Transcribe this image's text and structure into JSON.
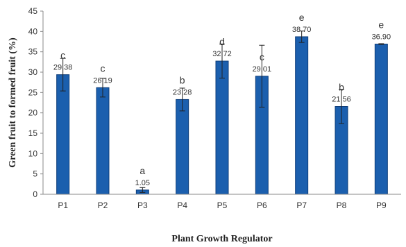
{
  "chart_data": {
    "type": "bar",
    "xlabel": "Plant Growth Regulator",
    "ylabel": "Green fruit to formed fruit (%)",
    "ylim": [
      0,
      45
    ],
    "yticks": [
      "0",
      "5",
      "10",
      "15",
      "20",
      "25",
      "30",
      "35",
      "40",
      "45"
    ],
    "ytick_values": [
      0,
      5,
      10,
      15,
      20,
      25,
      30,
      35,
      40,
      45
    ],
    "categories": [
      "P1",
      "P2",
      "P3",
      "P4",
      "P5",
      "P6",
      "P7",
      "P8",
      "P9"
    ],
    "values": [
      29.38,
      26.19,
      1.05,
      23.28,
      32.72,
      29.01,
      38.7,
      21.56,
      36.9
    ],
    "value_labels": [
      "29.38",
      "26.19",
      "1.05",
      "23.28",
      "32.72",
      "29.01",
      "38.70",
      "21.56",
      "36.90"
    ],
    "error": [
      4.0,
      2.3,
      0.6,
      2.8,
      4.2,
      7.6,
      1.4,
      4.2,
      0.1
    ],
    "letters": [
      "c",
      "c",
      "a",
      "b",
      "d",
      "c",
      "e",
      "b",
      "e"
    ],
    "bar_color": "#1B5FAE",
    "bar_edge_color": "#0D3D7A",
    "axis_color": "#888888",
    "grid": false,
    "legend": "none"
  }
}
